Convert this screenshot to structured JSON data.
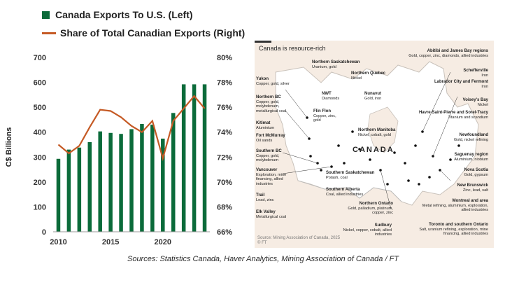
{
  "chart_data": {
    "type": "bar+line",
    "legend": [
      {
        "label": "Canada Exports To U.S. (Left)",
        "color": "#0b6b3a"
      },
      {
        "label": "Share of Total Canadian Exports (Right)",
        "color": "#c55a25"
      }
    ],
    "x": [
      2010,
      2011,
      2012,
      2013,
      2014,
      2015,
      2016,
      2017,
      2018,
      2019,
      2020,
      2021,
      2022,
      2023,
      2024
    ],
    "series": [
      {
        "name": "Canada Exports To U.S. (Left)",
        "type": "bar",
        "axis": "left",
        "values": [
          293,
          330,
          338,
          360,
          403,
          397,
          393,
          412,
          433,
          430,
          374,
          477,
          592,
          592,
          592
        ]
      },
      {
        "name": "Share of Total Canadian Exports (Right)",
        "type": "line",
        "axis": "right",
        "values": [
          73.0,
          72.3,
          72.9,
          74.4,
          75.8,
          75.7,
          75.2,
          74.5,
          74.0,
          74.9,
          71.9,
          74.9,
          75.9,
          76.9,
          75.9
        ]
      }
    ],
    "ylabel": "C$ Billions",
    "ylim": [
      0,
      700
    ],
    "y_ticks": [
      "0",
      "100",
      "200",
      "300",
      "400",
      "500",
      "600",
      "700"
    ],
    "y2lim": [
      66,
      80
    ],
    "y2_ticks": [
      "66%",
      "68%",
      "70%",
      "72%",
      "74%",
      "76%",
      "78%",
      "80%"
    ],
    "x_ticks": [
      "2010",
      "2015",
      "2020"
    ],
    "grid": false,
    "legend_position": "top-left"
  },
  "colors": {
    "bar": "#0b6b3a",
    "line": "#c55a25",
    "map_bg": "#f6ece3"
  },
  "map": {
    "title": "Canada is resource-rich",
    "country_label": "CANADA",
    "source": "Source: Mining Association of Canada, 2025",
    "credit": "© FT",
    "labels": [
      {
        "name": "Abitibi and James Bay regions",
        "desc": "Gold, copper, zinc, diamonds, allied industries"
      },
      {
        "name": "Northern Saskatchewan",
        "desc": "Uranium, gold"
      },
      {
        "name": "Yukon",
        "desc": "Copper, gold, silver"
      },
      {
        "name": "Northern Quebec",
        "desc": "Nickel"
      },
      {
        "name": "Schefferville",
        "desc": "Iron"
      },
      {
        "name": "Labrador City and Fermont",
        "desc": "Iron"
      },
      {
        "name": "NWT",
        "desc": "Diamonds"
      },
      {
        "name": "Nunavut",
        "desc": "Gold, iron"
      },
      {
        "name": "Northern BC",
        "desc": "Copper, gold, molybdenum, metallurgical coal"
      },
      {
        "name": "Voisey's Bay",
        "desc": "Nickel"
      },
      {
        "name": "Flin Flon",
        "desc": "Copper, zinc, gold"
      },
      {
        "name": "Havre-Saint-Pierre and Sorel-Tracy",
        "desc": "Titanium and scandium"
      },
      {
        "name": "Kitimat",
        "desc": "Aluminium"
      },
      {
        "name": "Northern Manitoba",
        "desc": "Nickel, cobalt, gold"
      },
      {
        "name": "Fort McMurray",
        "desc": "Oil sands"
      },
      {
        "name": "Newfoundland",
        "desc": "Gold, nickel refining"
      },
      {
        "name": "Southern BC",
        "desc": "Copper, gold, molybdenum"
      },
      {
        "name": "Saguenay region",
        "desc": "Aluminium, niobium"
      },
      {
        "name": "Vancouver",
        "desc": "Exploration, mine financing, allied industries"
      },
      {
        "name": "Southern Saskatchewan",
        "desc": "Potash, coal"
      },
      {
        "name": "Nova Scotia",
        "desc": "Gold, gypsum"
      },
      {
        "name": "Southern Alberta",
        "desc": "Coal, allied industries"
      },
      {
        "name": "New Brunswick",
        "desc": "Zinc, lead, salt"
      },
      {
        "name": "Trail",
        "desc": "Lead, zinc"
      },
      {
        "name": "Northern Ontario",
        "desc": "Gold, palladium, platinum, copper, zinc"
      },
      {
        "name": "Montreal and area",
        "desc": "Metal refining, aluminium, exploration, allied industries"
      },
      {
        "name": "Elk Valley",
        "desc": "Metallurgical coal"
      },
      {
        "name": "Sudbury",
        "desc": "Nickel, copper, cobalt, allied industries"
      },
      {
        "name": "Toronto and southern Ontario",
        "desc": "Salt, uranium refining, exploration, mine financing, allied industries"
      }
    ]
  },
  "sources": "Sources: Statistics Canada, Haver Analytics, Mining Association of Canada / FT"
}
